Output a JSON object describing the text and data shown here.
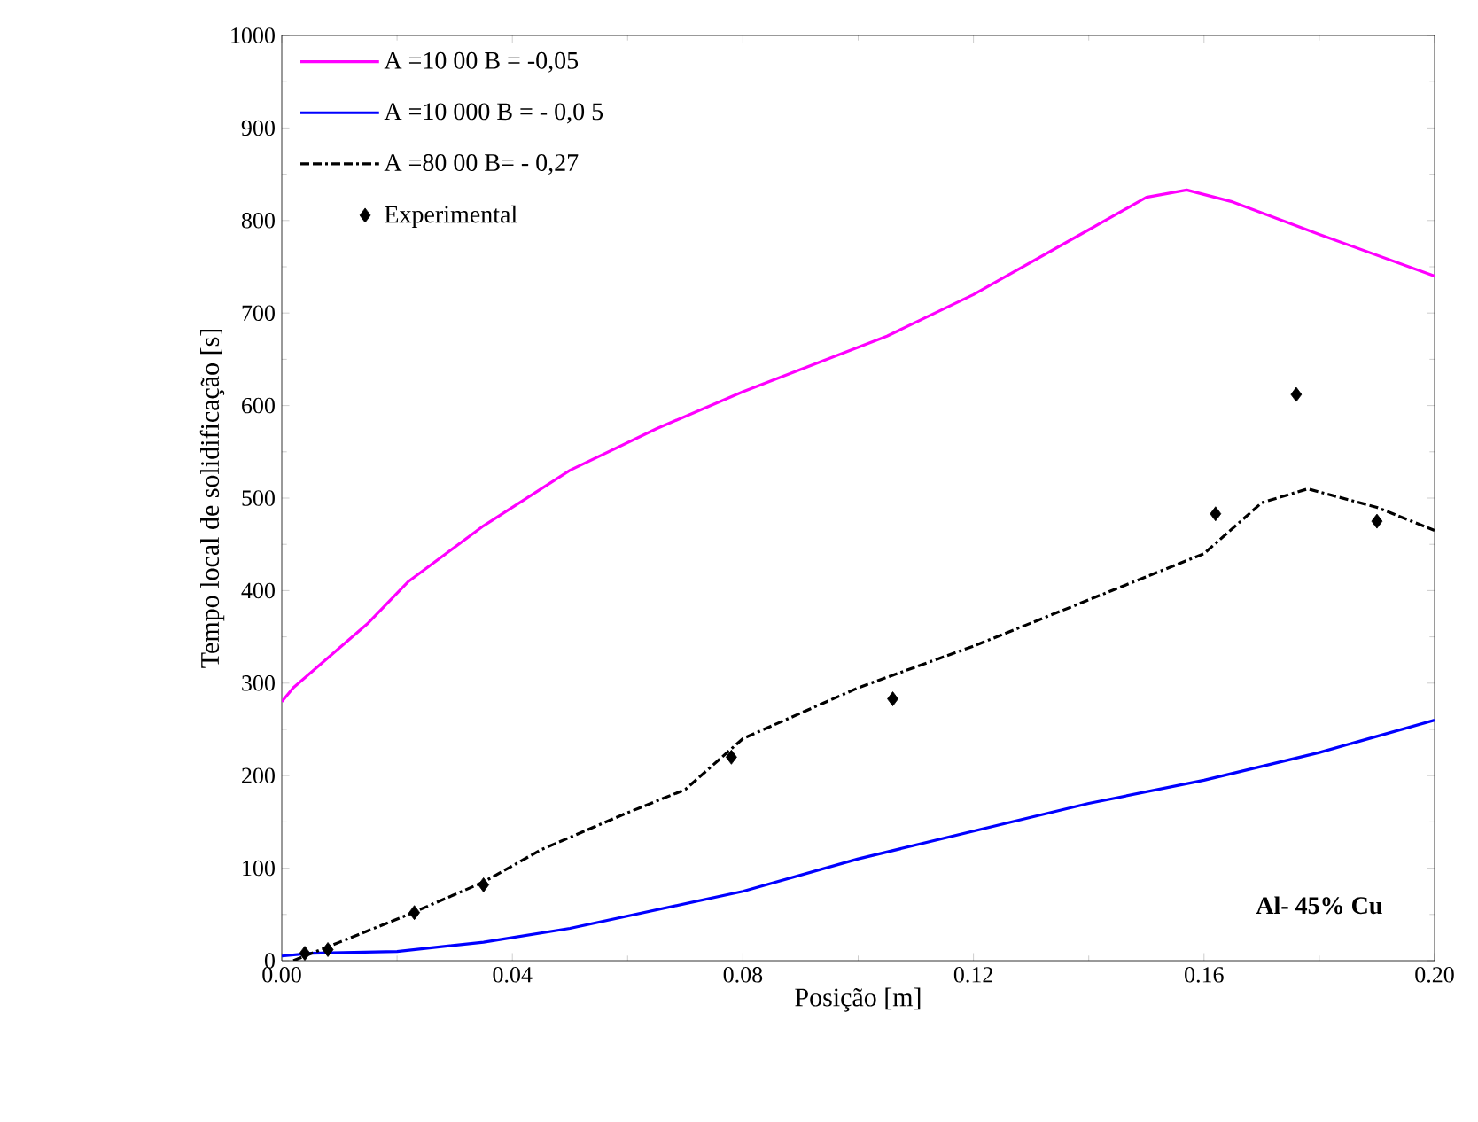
{
  "chart_data": {
    "type": "line",
    "xlabel": "Posição [m]",
    "ylabel": "Tempo local de solidificação [s]",
    "xlim": [
      0,
      0.2
    ],
    "ylim": [
      0,
      1000
    ],
    "xticks": [
      {
        "value": 0,
        "label": "0.00"
      },
      {
        "value": 0.04,
        "label": "0.04"
      },
      {
        "value": 0.08,
        "label": "0.08"
      },
      {
        "value": 0.12,
        "label": "0.12"
      },
      {
        "value": 0.16,
        "label": "0.16"
      },
      {
        "value": 0.2,
        "label": "0.20"
      }
    ],
    "yticks": [
      0,
      100,
      200,
      300,
      400,
      500,
      600,
      700,
      800,
      900,
      1000
    ],
    "legend": "top left",
    "grid": false,
    "annotations": [
      "**Al- 45% Cu**"
    ],
    "series": [
      {
        "name": "A =10 00 B = -0,05",
        "color": "#ff00ff",
        "line_style": "solid",
        "marker": "none",
        "x": [
          0,
          0.002,
          0.015,
          0.022,
          0.035,
          0.05,
          0.065,
          0.08,
          0.105,
          0.12,
          0.14,
          0.15,
          0.157,
          0.165,
          0.18,
          0.2
        ],
        "values": [
          280,
          295,
          365,
          410,
          470,
          530,
          575,
          615,
          675,
          720,
          790,
          825,
          833,
          820,
          785,
          740
        ]
      },
      {
        "name": "A =10 000 B = - 0,0 5",
        "color": "#0000ff",
        "line_style": "solid",
        "marker": "none",
        "x": [
          0,
          0.005,
          0.02,
          0.035,
          0.05,
          0.08,
          0.1,
          0.12,
          0.14,
          0.16,
          0.18,
          0.2
        ],
        "values": [
          5,
          8,
          10,
          20,
          35,
          75,
          110,
          140,
          170,
          195,
          225,
          260
        ]
      },
      {
        "name": "A =80 00 B= - 0,27",
        "color": "#000000",
        "line_style": "dashed",
        "marker": "none",
        "x": [
          0.002,
          0.01,
          0.022,
          0.035,
          0.045,
          0.06,
          0.07,
          0.08,
          0.1,
          0.12,
          0.14,
          0.16,
          0.17,
          0.178,
          0.19,
          0.2
        ],
        "values": [
          0,
          20,
          50,
          85,
          120,
          160,
          185,
          240,
          295,
          340,
          390,
          440,
          495,
          510,
          490,
          465
        ]
      },
      {
        "name": "Experimental",
        "type": "scatter",
        "color": "#000000",
        "marker": "diamond",
        "x": [
          0.004,
          0.008,
          0.023,
          0.035,
          0.078,
          0.106,
          0.162,
          0.176,
          0.19
        ],
        "values": [
          8,
          12,
          52,
          82,
          220,
          283,
          483,
          612,
          475
        ]
      }
    ]
  }
}
